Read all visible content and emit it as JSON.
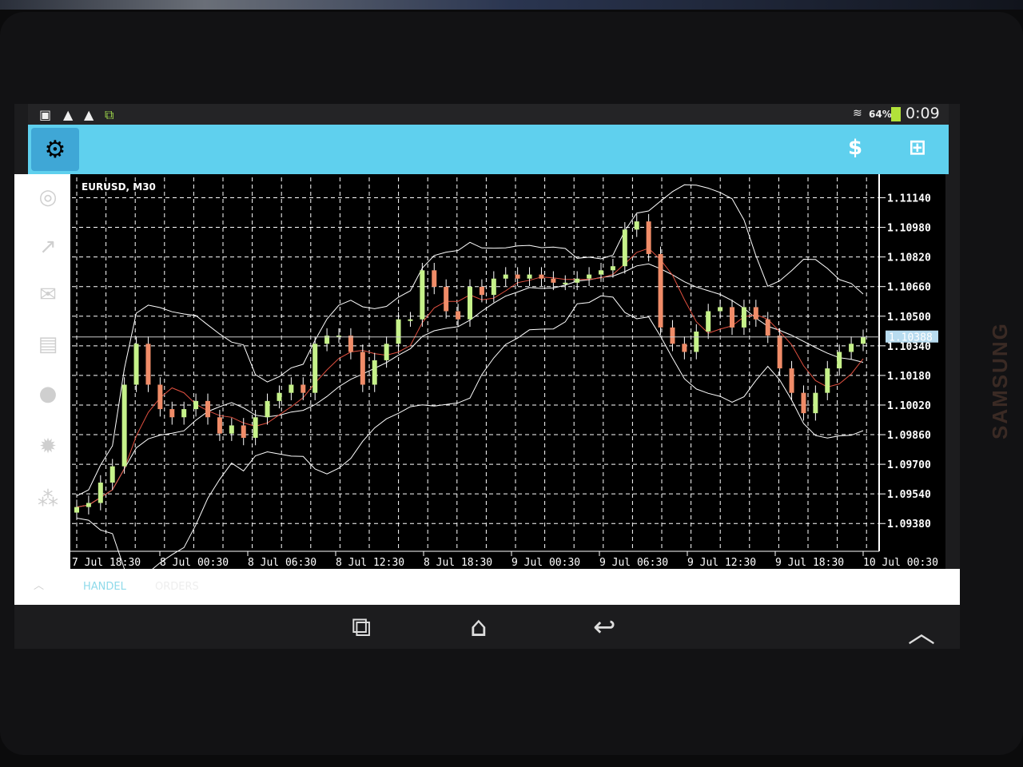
{
  "status_bar": {
    "icons": [
      "sim-icon",
      "warning-icon",
      "warning-icon",
      "screen-share-icon"
    ],
    "wifi": "wifi-icon",
    "battery_percent": "64%",
    "battery_level": 0.64,
    "time": "0:09"
  },
  "toolbar": {
    "logo": "metatrader-logo",
    "buttons": [
      "quotes-dollar-icon",
      "new-order-icon"
    ]
  },
  "sidebar": {
    "items": [
      "account-icon",
      "trade-icon",
      "mail-icon",
      "news-icon",
      "chat-icon",
      "settings-icon",
      "community-icon"
    ]
  },
  "chart": {
    "symbol_label": "EURUSD, M30",
    "current_price": "1.10388",
    "colors": {
      "bull": "#c6f28a",
      "bear": "#f08c68",
      "grid": "#ffffff",
      "ma": "#e05040",
      "bands": "#ffffff",
      "price_tag": "#b8dcf0"
    }
  },
  "tabs": [
    {
      "label": "HANDEL",
      "active": true
    },
    {
      "label": "ORDERS",
      "active": false
    }
  ],
  "nav": {
    "buttons": [
      "recent-apps-icon",
      "home-icon",
      "back-icon",
      "up-chevron-icon"
    ]
  },
  "chart_data": {
    "type": "candlestick",
    "title": "EURUSD, M30",
    "ylim": [
      1.0923,
      1.1125
    ],
    "y_ticks": [
      "1.11140",
      "1.10980",
      "1.10820",
      "1.10660",
      "1.10500",
      "1.10340",
      "1.10180",
      "1.10020",
      "1.09860",
      "1.09700",
      "1.09540",
      "1.09380"
    ],
    "x_ticks": [
      "7 Jul 18:30",
      "8 Jul 00:30",
      "8 Jul 06:30",
      "8 Jul 12:30",
      "8 Jul 18:30",
      "9 Jul 00:30",
      "9 Jul 06:30",
      "9 Jul 12:30",
      "9 Jul 18:30",
      "10 Jul 00:30"
    ],
    "grid": true,
    "closes": [
      1.09469,
      1.09491,
      1.09601,
      1.09689,
      1.1013,
      1.10351,
      1.1013,
      1.09998,
      1.09954,
      1.09998,
      1.10042,
      1.09954,
      1.09866,
      1.0991,
      1.09843,
      1.09954,
      1.10042,
      1.10086,
      1.1013,
      1.10086,
      1.10351,
      1.10395,
      1.10395,
      1.10307,
      1.1013,
      1.10262,
      1.10351,
      1.10483,
      1.10483,
      1.10748,
      1.10659,
      1.10527,
      1.10483,
      1.10659,
      1.10615,
      1.10703,
      1.10725,
      1.10703,
      1.10725,
      1.10703,
      1.10681,
      1.10681,
      1.10703,
      1.10725,
      1.10748,
      1.1077,
      1.10968,
      1.11012,
      1.10836,
      1.10439,
      1.10351,
      1.10307,
      1.10417,
      1.10527,
      1.10549,
      1.10439,
      1.10549,
      1.10483,
      1.10395,
      1.10218,
      1.10086,
      1.09976,
      1.10086,
      1.10218,
      1.10307,
      1.10351,
      1.10388
    ]
  }
}
